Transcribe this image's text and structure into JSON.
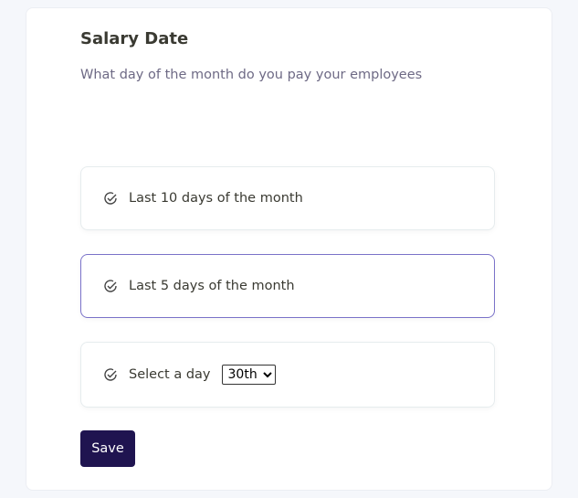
{
  "title": "Salary Date",
  "subtitle": "What day of the month do you pay your employees",
  "options": [
    {
      "label": "Last 10 days of the month",
      "icon": "check-circle-icon"
    },
    {
      "label": "Last 5 days of the month",
      "icon": "check-circle-icon",
      "selected": true
    },
    {
      "label": "Select a day",
      "icon": "check-circle-icon"
    }
  ],
  "day_select": {
    "value": "30th"
  },
  "save_label": "Save",
  "colors": {
    "accent": "#7a72c9",
    "button": "#1f1450"
  }
}
